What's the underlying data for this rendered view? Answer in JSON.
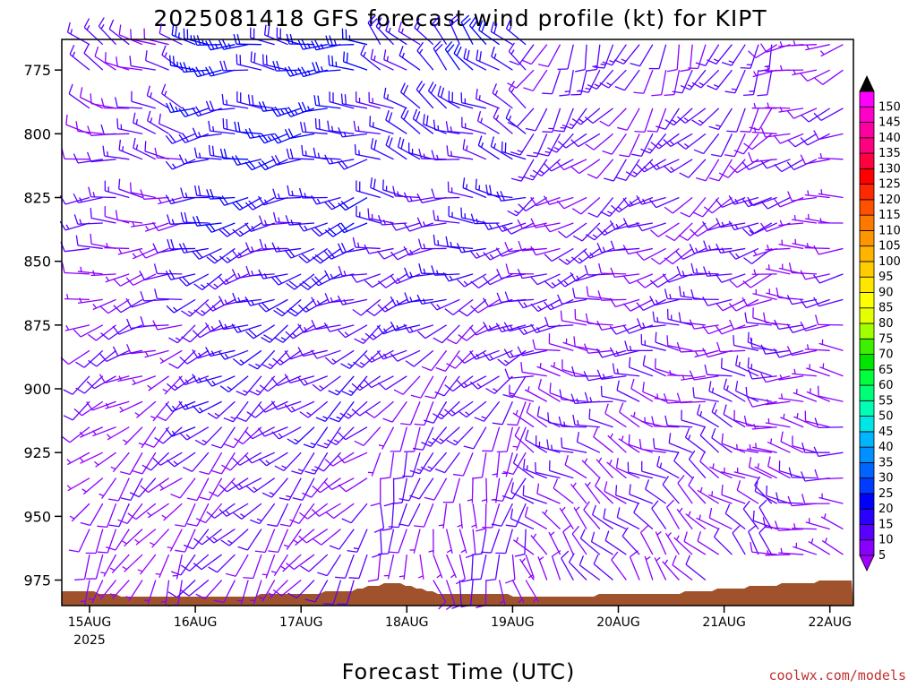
{
  "chart_data": {
    "type": "wind-profile",
    "title": "2025081418 GFS forecast wind profile (kt) for KIPT",
    "xlabel": "Forecast Time (UTC)",
    "ylabel": "",
    "credit": "coolwx.com/models",
    "x_ticks": [
      "15AUG",
      "16AUG",
      "17AUG",
      "18AUG",
      "19AUG",
      "20AUG",
      "21AUG",
      "22AUG"
    ],
    "x_year_label": "2025",
    "y_ticks": [
      775,
      800,
      825,
      850,
      875,
      900,
      925,
      950,
      975
    ],
    "ylim": [
      763,
      985
    ],
    "y_scale": "pressure (inverted)",
    "colorbar": {
      "units": "kt",
      "levels": [
        5,
        10,
        15,
        20,
        25,
        30,
        35,
        40,
        45,
        50,
        55,
        60,
        65,
        70,
        75,
        80,
        85,
        90,
        95,
        100,
        105,
        110,
        115,
        120,
        125,
        130,
        135,
        140,
        145,
        150
      ],
      "colors": [
        "#8a00ff",
        "#5a00ff",
        "#2a00ff",
        "#0000ff",
        "#003cff",
        "#0064ff",
        "#0090ff",
        "#00b4ff",
        "#00e6e6",
        "#00ffb4",
        "#00ff78",
        "#00ff3c",
        "#00e600",
        "#3cf000",
        "#a0ff00",
        "#e6ff00",
        "#ffff00",
        "#ffe600",
        "#ffcc00",
        "#ffb400",
        "#ff9600",
        "#ff7800",
        "#ff5000",
        "#ff2800",
        "#ff0000",
        "#ff0040",
        "#ff0080",
        "#ff00a0",
        "#ff00c8",
        "#ff00ff"
      ],
      "lower_arrow_color": "#a000ff",
      "upper_arrow_color": "#000000"
    },
    "terrain_color": "#a0522d",
    "terrain_pressure": [
      {
        "day": 0.0,
        "p": 979
      },
      {
        "day": 0.12,
        "p": 980
      },
      {
        "day": 0.3,
        "p": 981
      },
      {
        "day": 0.5,
        "p": 982
      },
      {
        "day": 0.7,
        "p": 982
      },
      {
        "day": 1.0,
        "p": 982
      },
      {
        "day": 1.3,
        "p": 982
      },
      {
        "day": 1.6,
        "p": 981
      },
      {
        "day": 1.9,
        "p": 980
      },
      {
        "day": 2.2,
        "p": 980
      },
      {
        "day": 2.5,
        "p": 979
      },
      {
        "day": 2.75,
        "p": 977
      },
      {
        "day": 2.9,
        "p": 976
      },
      {
        "day": 3.1,
        "p": 978
      },
      {
        "day": 3.4,
        "p": 981
      },
      {
        "day": 3.75,
        "p": 980
      },
      {
        "day": 4.0,
        "p": 981
      },
      {
        "day": 4.3,
        "p": 981
      },
      {
        "day": 4.8,
        "p": 981
      },
      {
        "day": 5.2,
        "p": 980
      },
      {
        "day": 5.6,
        "p": 980
      },
      {
        "day": 5.9,
        "p": 979
      },
      {
        "day": 6.2,
        "p": 978
      },
      {
        "day": 6.5,
        "p": 977
      },
      {
        "day": 6.8,
        "p": 976
      },
      {
        "day": 7.1,
        "p": 975
      },
      {
        "day": 7.5,
        "p": 976
      }
    ],
    "pressure_levels": [
      765,
      775,
      790,
      800,
      810,
      825,
      835,
      845,
      855,
      865,
      875,
      885,
      895,
      905,
      915,
      925,
      935,
      945,
      955,
      965,
      975
    ],
    "time_segments": [
      {
        "start_day": 0.0,
        "end_day": 1.0,
        "step_hours": 3,
        "dir_sfc": 200,
        "dir_top": 300,
        "speed_sfc": 6,
        "speed_top": 12
      },
      {
        "start_day": 1.0,
        "end_day": 2.75,
        "step_hours": 3,
        "dir_sfc": 210,
        "dir_top": 275,
        "speed_sfc": 8,
        "speed_top": 22
      },
      {
        "start_day": 2.75,
        "end_day": 4.2,
        "step_hours": 3,
        "dir_sfc": 160,
        "dir_top": 320,
        "speed_sfc": 7,
        "speed_top": 18
      },
      {
        "start_day": 4.2,
        "end_day": 6.5,
        "step_hours": 3,
        "dir_sfc": 330,
        "dir_top": 200,
        "speed_sfc": 9,
        "speed_top": 12
      },
      {
        "start_day": 6.5,
        "end_day": 7.5,
        "step_hours": 3,
        "dir_sfc": 290,
        "dir_top": 250,
        "speed_sfc": 8,
        "speed_top": 8
      }
    ]
  }
}
